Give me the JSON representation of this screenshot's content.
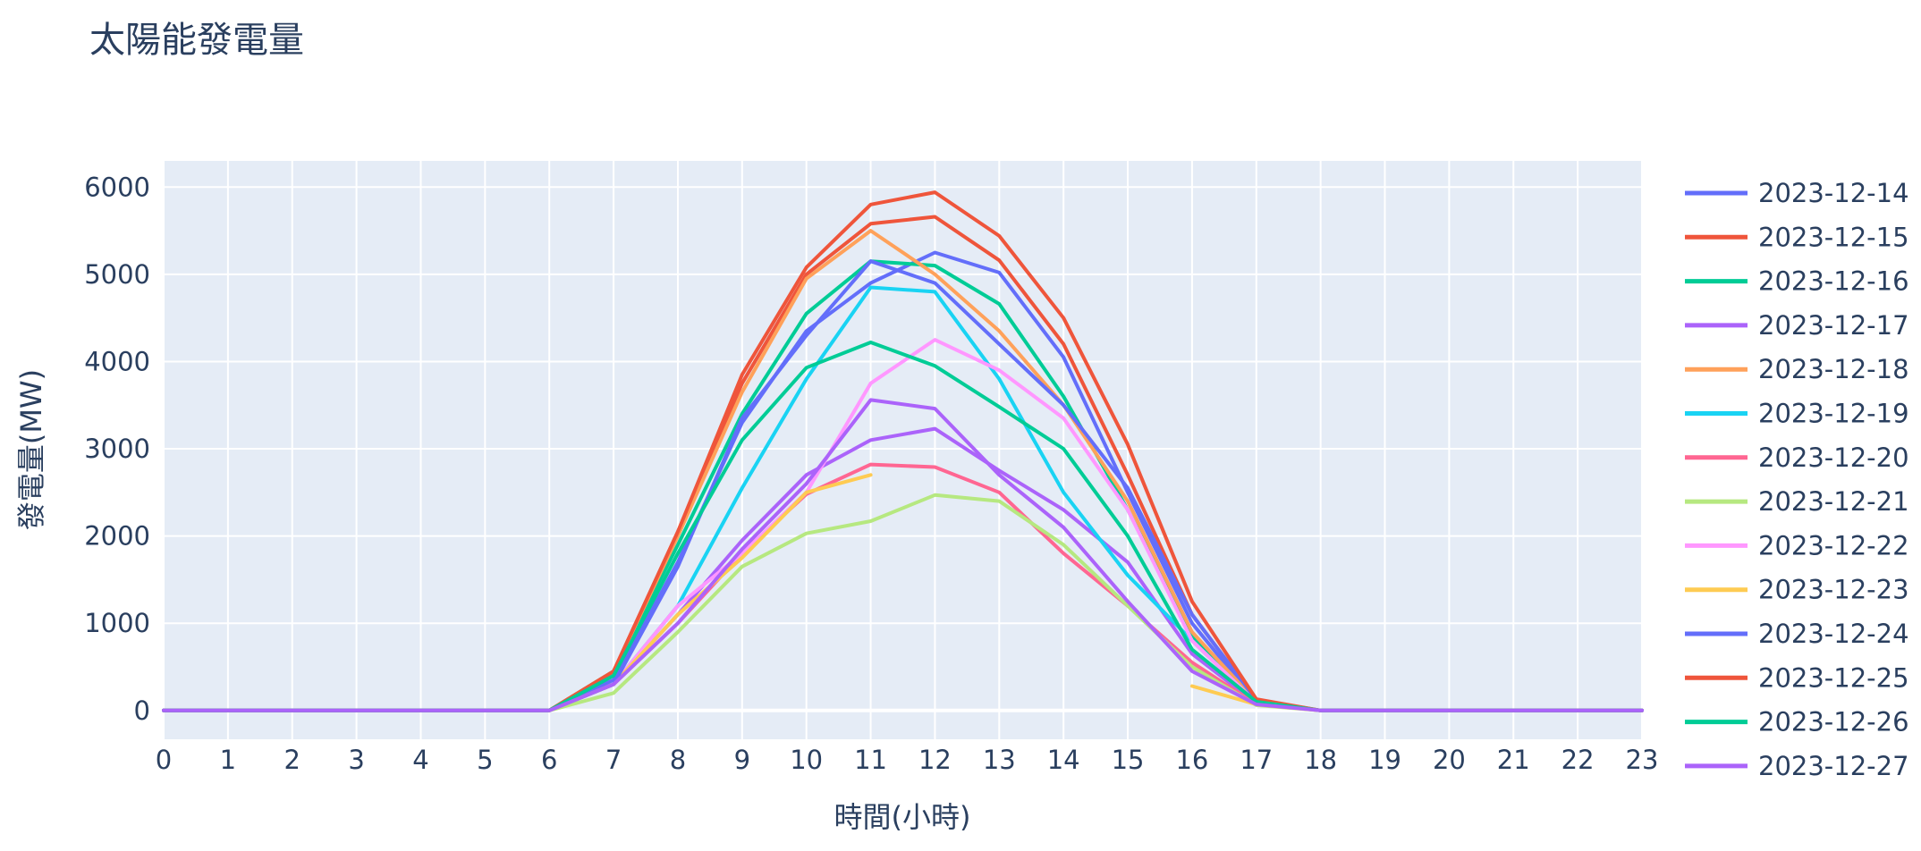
{
  "chart_data": {
    "type": "line",
    "title": "太陽能發電量",
    "xlabel": "時間(小時)",
    "ylabel": "發電量(MW)",
    "x": [
      0,
      1,
      2,
      3,
      4,
      5,
      6,
      7,
      8,
      9,
      10,
      11,
      12,
      13,
      14,
      15,
      16,
      17,
      18,
      19,
      20,
      21,
      22,
      23
    ],
    "xlim": [
      0,
      23
    ],
    "ylim": [
      -330,
      6300
    ],
    "yticks": [
      0,
      1000,
      2000,
      3000,
      4000,
      5000,
      6000
    ],
    "grid": true,
    "legend_position": "right",
    "background": "#e5ecf6",
    "series": [
      {
        "name": "2023-12-14",
        "color": "#636efa",
        "values": [
          0,
          0,
          0,
          0,
          0,
          0,
          0,
          350,
          1700,
          3300,
          4350,
          4900,
          5250,
          5020,
          4050,
          2500,
          1000,
          100,
          0,
          0,
          0,
          0,
          0,
          0
        ]
      },
      {
        "name": "2023-12-15",
        "color": "#ef553b",
        "values": [
          0,
          0,
          0,
          0,
          0,
          0,
          0,
          450,
          2050,
          3750,
          5000,
          5580,
          5660,
          5160,
          4200,
          2700,
          1100,
          120,
          0,
          0,
          0,
          0,
          0,
          0
        ]
      },
      {
        "name": "2023-12-16",
        "color": "#00cc96",
        "values": [
          0,
          0,
          0,
          0,
          0,
          0,
          0,
          450,
          1900,
          3400,
          4550,
          5150,
          5100,
          4660,
          3600,
          2300,
          850,
          110,
          0,
          0,
          0,
          0,
          0,
          0
        ]
      },
      {
        "name": "2023-12-17",
        "color": "#ab63fa",
        "values": [
          0,
          0,
          0,
          0,
          0,
          0,
          0,
          300,
          1100,
          1950,
          2700,
          3100,
          3230,
          2750,
          2300,
          1700,
          650,
          80,
          0,
          0,
          0,
          0,
          0,
          0
        ]
      },
      {
        "name": "2023-12-18",
        "color": "#ffa15a",
        "values": [
          0,
          0,
          0,
          0,
          0,
          0,
          0,
          450,
          2000,
          3650,
          4950,
          5500,
          5000,
          4350,
          3500,
          2400,
          900,
          100,
          0,
          0,
          0,
          0,
          0,
          0
        ]
      },
      {
        "name": "2023-12-19",
        "color": "#19d3f3",
        "values": [
          0,
          0,
          0,
          0,
          0,
          0,
          0,
          300,
          1200,
          2550,
          3800,
          4850,
          4800,
          3800,
          2500,
          1550,
          800,
          90,
          0,
          0,
          0,
          0,
          0,
          0
        ]
      },
      {
        "name": "2023-12-20",
        "color": "#ff6692",
        "values": [
          0,
          0,
          0,
          0,
          0,
          0,
          0,
          300,
          1000,
          1800,
          2480,
          2820,
          2790,
          2500,
          1800,
          1200,
          550,
          70,
          0,
          0,
          0,
          0,
          0,
          0
        ]
      },
      {
        "name": "2023-12-21",
        "color": "#b6e880",
        "values": [
          0,
          0,
          0,
          0,
          0,
          0,
          0,
          200,
          900,
          1650,
          2030,
          2170,
          2470,
          2400,
          1900,
          1200,
          500,
          60,
          0,
          0,
          0,
          0,
          0,
          0
        ]
      },
      {
        "name": "2023-12-22",
        "color": "#ff97ff",
        "values": [
          0,
          0,
          0,
          0,
          0,
          0,
          0,
          300,
          1200,
          1800,
          2500,
          3750,
          4250,
          3900,
          3350,
          2300,
          800,
          90,
          0,
          0,
          0,
          0,
          0,
          0
        ]
      },
      {
        "name": "2023-12-23",
        "color": "#fecb52",
        "values": [
          null,
          null,
          null,
          null,
          null,
          null,
          0,
          300,
          1100,
          1750,
          2500,
          2700,
          null,
          null,
          null,
          null,
          280,
          70,
          0,
          0,
          0,
          0,
          0,
          0
        ]
      },
      {
        "name": "2023-12-24",
        "color": "#636efa",
        "values": [
          0,
          0,
          0,
          0,
          0,
          0,
          0,
          300,
          1650,
          3350,
          4300,
          5150,
          4900,
          4200,
          3500,
          2550,
          1100,
          120,
          0,
          0,
          0,
          0,
          0,
          0
        ]
      },
      {
        "name": "2023-12-25",
        "color": "#ef553b",
        "values": [
          0,
          0,
          0,
          0,
          0,
          0,
          0,
          450,
          2050,
          3850,
          5080,
          5800,
          5940,
          5440,
          4500,
          3050,
          1250,
          130,
          0,
          0,
          0,
          0,
          0,
          0
        ]
      },
      {
        "name": "2023-12-26",
        "color": "#00cc96",
        "values": [
          0,
          0,
          0,
          0,
          0,
          0,
          0,
          400,
          1800,
          3100,
          3930,
          4220,
          3950,
          3480,
          3000,
          2000,
          700,
          100,
          0,
          0,
          0,
          0,
          0,
          0
        ]
      },
      {
        "name": "2023-12-27",
        "color": "#ab63fa",
        "values": [
          0,
          0,
          0,
          0,
          0,
          0,
          0,
          300,
          1000,
          1850,
          2600,
          3560,
          3460,
          2700,
          2100,
          1250,
          450,
          70,
          0,
          0,
          0,
          0,
          0,
          0
        ]
      }
    ]
  }
}
